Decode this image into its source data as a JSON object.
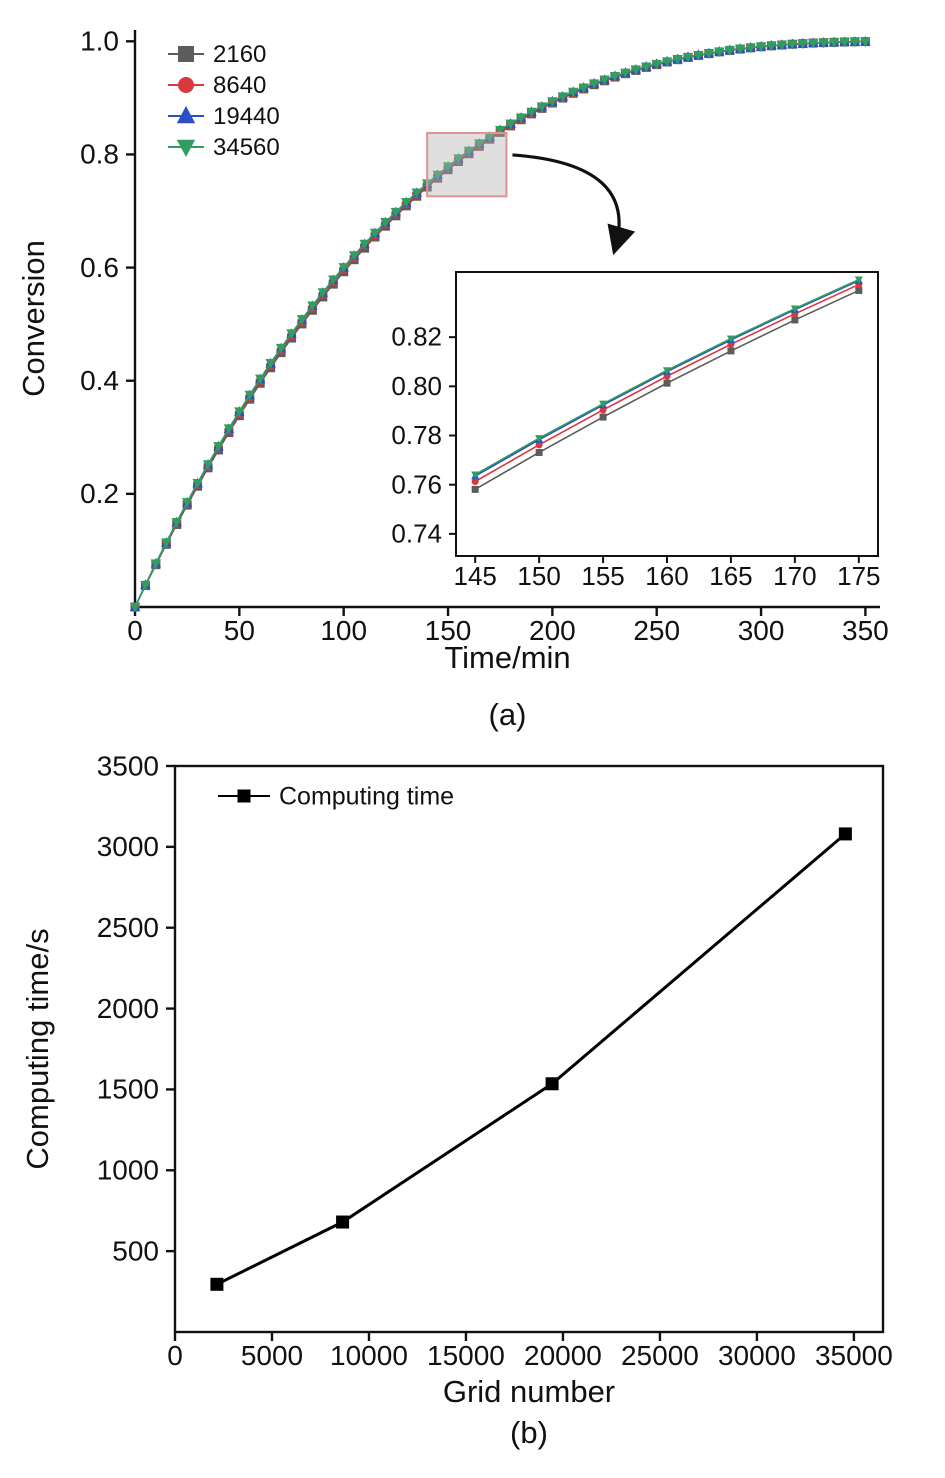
{
  "chart_data": [
    {
      "id": "a",
      "type": "line",
      "panel_label": "(a)",
      "title": "",
      "xlabel": "Time/min",
      "ylabel": "Conversion",
      "xlim": [
        0,
        357
      ],
      "ylim": [
        0,
        1.02
      ],
      "xticks": {
        "values": [
          0,
          50,
          100,
          150,
          200,
          250,
          300,
          350
        ],
        "labels": [
          "0",
          "50",
          "100",
          "150",
          "200",
          "250",
          "300",
          "350"
        ]
      },
      "yticks": {
        "values": [
          0.2,
          0.4,
          0.6,
          0.8,
          1.0
        ],
        "labels": [
          "0.2",
          "0.4",
          "0.6",
          "0.8",
          "1.0"
        ]
      },
      "legend_position": "top-left",
      "grid": false,
      "x": [
        0,
        5,
        10,
        15,
        20,
        25,
        30,
        35,
        40,
        45,
        50,
        55,
        60,
        65,
        70,
        75,
        80,
        85,
        90,
        95,
        100,
        105,
        110,
        115,
        120,
        125,
        130,
        135,
        140,
        145,
        150,
        155,
        160,
        165,
        170,
        175,
        180,
        185,
        190,
        195,
        200,
        205,
        210,
        215,
        220,
        225,
        230,
        235,
        240,
        245,
        250,
        255,
        260,
        265,
        270,
        275,
        280,
        285,
        290,
        295,
        300,
        305,
        310,
        315,
        320,
        325,
        330,
        335,
        340,
        345,
        350
      ],
      "series": [
        {
          "name": "2160",
          "color": "#5c5c5c",
          "marker": "square",
          "values": [
            0,
            0.0379,
            0.0748,
            0.1108,
            0.1459,
            0.1802,
            0.2135,
            0.246,
            0.2776,
            0.3084,
            0.3383,
            0.3674,
            0.3956,
            0.423,
            0.4497,
            0.4754,
            0.5004,
            0.5246,
            0.5481,
            0.5708,
            0.5927,
            0.6139,
            0.6344,
            0.6541,
            0.6732,
            0.6915,
            0.7091,
            0.7261,
            0.7424,
            0.7581,
            0.7731,
            0.7875,
            0.8013,
            0.8144,
            0.827,
            0.839,
            0.8505,
            0.8614,
            0.8717,
            0.8815,
            0.8909,
            0.8997,
            0.9081,
            0.9158,
            0.9233,
            0.9302,
            0.9368,
            0.9428,
            0.9486,
            0.9539,
            0.9588,
            0.9634,
            0.9676,
            0.9715,
            0.975,
            0.9783,
            0.9813,
            0.9839,
            0.9863,
            0.9885,
            0.9904,
            0.9921,
            0.9935,
            0.9949,
            0.996,
            0.9969,
            0.9976,
            0.9982,
            0.9988,
            0.9992,
            0.9995
          ]
        },
        {
          "name": "8640",
          "color": "#d9383d",
          "marker": "circle",
          "values": [
            0,
            0.0386,
            0.076,
            0.1126,
            0.1482,
            0.1829,
            0.2166,
            0.2494,
            0.2813,
            0.3123,
            0.3424,
            0.3716,
            0.3999,
            0.4275,
            0.4541,
            0.4799,
            0.5049,
            0.5291,
            0.5525,
            0.5752,
            0.597,
            0.6182,
            0.6385,
            0.6581,
            0.6771,
            0.6953,
            0.7128,
            0.7296,
            0.7458,
            0.7613,
            0.7762,
            0.7904,
            0.8041,
            0.8171,
            0.8295,
            0.8414,
            0.8527,
            0.8635,
            0.8737,
            0.8834,
            0.8926,
            0.9012,
            0.9095,
            0.9172,
            0.9246,
            0.9313,
            0.9378,
            0.9438,
            0.9494,
            0.9547,
            0.9595,
            0.964,
            0.9681,
            0.972,
            0.9754,
            0.9787,
            0.9816,
            0.9842,
            0.9865,
            0.9887,
            0.9906,
            0.9922,
            0.9936,
            0.9949,
            0.9961,
            0.997,
            0.9977,
            0.9983,
            0.9988,
            0.9992,
            0.9995
          ]
        },
        {
          "name": "19440",
          "color": "#2b4fc4",
          "marker": "triangle-up",
          "values": [
            0,
            0.039,
            0.0769,
            0.1138,
            0.1497,
            0.1847,
            0.2186,
            0.2517,
            0.2837,
            0.3149,
            0.3451,
            0.3744,
            0.4028,
            0.4304,
            0.4571,
            0.4829,
            0.5079,
            0.5321,
            0.5555,
            0.5781,
            0.5999,
            0.621,
            0.6413,
            0.6608,
            0.6797,
            0.6978,
            0.7152,
            0.732,
            0.7481,
            0.7635,
            0.7783,
            0.7924,
            0.806,
            0.8189,
            0.8312,
            0.843,
            0.8542,
            0.8649,
            0.875,
            0.8846,
            0.8937,
            0.9023,
            0.9105,
            0.9181,
            0.9254,
            0.9321,
            0.9385,
            0.9444,
            0.95,
            0.9552,
            0.96,
            0.9644,
            0.9685,
            0.9723,
            0.9757,
            0.9789,
            0.9818,
            0.9844,
            0.9867,
            0.9888,
            0.9907,
            0.9923,
            0.9937,
            0.995,
            0.9961,
            0.997,
            0.9977,
            0.9983,
            0.9988,
            0.9992,
            0.9995
          ]
        },
        {
          "name": "34560",
          "color": "#2f9e60",
          "marker": "triangle-down",
          "values": [
            0,
            0.0391,
            0.0771,
            0.1141,
            0.1501,
            0.1852,
            0.2191,
            0.2523,
            0.2844,
            0.3156,
            0.3458,
            0.3751,
            0.4036,
            0.4312,
            0.4579,
            0.4837,
            0.5087,
            0.5329,
            0.5563,
            0.5789,
            0.6007,
            0.6218,
            0.642,
            0.6615,
            0.6804,
            0.6985,
            0.7159,
            0.7326,
            0.7487,
            0.7641,
            0.7789,
            0.7929,
            0.8065,
            0.8194,
            0.8316,
            0.8434,
            0.8546,
            0.8653,
            0.8754,
            0.8849,
            0.894,
            0.9026,
            0.9108,
            0.9183,
            0.9256,
            0.9323,
            0.9387,
            0.9446,
            0.9502,
            0.9553,
            0.9601,
            0.9645,
            0.9686,
            0.9724,
            0.9758,
            0.979,
            0.9819,
            0.9844,
            0.9867,
            0.9888,
            0.9907,
            0.9923,
            0.9937,
            0.995,
            0.9961,
            0.997,
            0.9977,
            0.9983,
            0.9988,
            0.9992,
            0.9995
          ]
        }
      ],
      "zoom_box": {
        "x0": 140,
        "x1": 178,
        "y0": 0.726,
        "y1": 0.838,
        "stroke": "#e09193",
        "fill": "rgba(175,175,175,0.4)"
      },
      "inset": {
        "xlim": [
          143.5,
          176.5
        ],
        "ylim": [
          0.731,
          0.8465
        ],
        "xticks": {
          "values": [
            145,
            150,
            155,
            160,
            165,
            170,
            175
          ],
          "labels": [
            "145",
            "150",
            "155",
            "160",
            "165",
            "170",
            "175"
          ]
        },
        "yticks": {
          "values": [
            0.74,
            0.76,
            0.78,
            0.8,
            0.82
          ],
          "labels": [
            "0.74",
            "0.76",
            "0.78",
            "0.80",
            "0.82"
          ]
        }
      }
    },
    {
      "id": "b",
      "type": "line",
      "panel_label": "(b)",
      "title": "",
      "xlabel": "Grid number",
      "ylabel": "Computing time/s",
      "xlim": [
        0,
        36500
      ],
      "ylim": [
        0,
        3500
      ],
      "xticks": {
        "values": [
          0,
          5000,
          10000,
          15000,
          20000,
          25000,
          30000,
          35000
        ],
        "labels": [
          "0",
          "5000",
          "10000",
          "15000",
          "20000",
          "25000",
          "30000",
          "35000"
        ]
      },
      "yticks": {
        "values": [
          500,
          1000,
          1500,
          2000,
          2500,
          3000,
          3500
        ],
        "labels": [
          "500",
          "1000",
          "1500",
          "2000",
          "2500",
          "3000",
          "3500"
        ]
      },
      "legend_position": "top-left",
      "grid": false,
      "x": [
        2160,
        8640,
        19440,
        34560
      ],
      "series": [
        {
          "name": "Computing time",
          "color": "#000000",
          "marker": "square",
          "values": [
            295,
            680,
            1535,
            3080
          ]
        }
      ]
    }
  ]
}
